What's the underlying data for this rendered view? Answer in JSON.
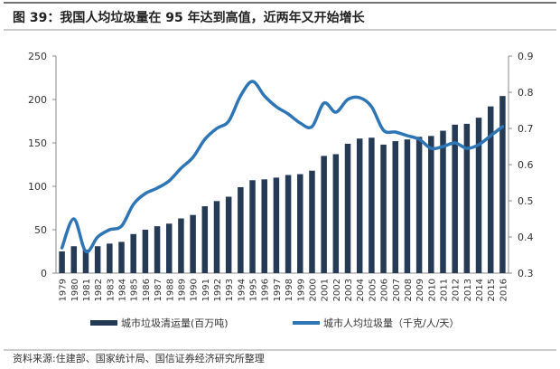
{
  "title": "图 39：我国人均垃圾量在 95 年达到高值，近两年又开始增长",
  "source": "资料来源:住建部、国家统计局、国信证券经济研究所整理",
  "colors": {
    "bar": "#253A55",
    "line": "#2E75B6",
    "axis": "#888888",
    "text": "#333333"
  },
  "chart_data": {
    "type": "bar+line",
    "title": "图 39：我国人均垃圾量在 95 年达到高值，近两年又开始增长",
    "categories": [
      "1979",
      "1980",
      "1981",
      "1982",
      "1983",
      "1984",
      "1985",
      "1986",
      "1987",
      "1988",
      "1989",
      "1990",
      "1991",
      "1992",
      "1993",
      "1994",
      "1995",
      "1996",
      "1997",
      "1998",
      "1999",
      "2000",
      "2001",
      "2002",
      "2003",
      "2004",
      "2005",
      "2006",
      "2007",
      "2008",
      "2009",
      "2010",
      "2011",
      "2012",
      "2013",
      "2014",
      "2015",
      "2016"
    ],
    "series": [
      {
        "name": "城市垃圾清运量(百万吨)",
        "type": "bar",
        "axis": "left",
        "values": [
          25,
          31,
          27,
          31,
          34,
          36,
          45,
          50,
          54,
          57,
          63,
          67,
          77,
          83,
          88,
          99,
          107,
          108,
          110,
          113,
          114,
          118,
          135,
          137,
          149,
          155,
          156,
          148,
          152,
          154,
          157,
          158,
          164,
          171,
          172,
          179,
          192,
          204
        ]
      },
      {
        "name": "城市人均垃圾量（千克/人/天）",
        "type": "line",
        "axis": "right",
        "values": [
          0.37,
          0.45,
          0.36,
          0.4,
          0.42,
          0.43,
          0.49,
          0.52,
          0.535,
          0.555,
          0.59,
          0.62,
          0.67,
          0.7,
          0.72,
          0.79,
          0.83,
          0.79,
          0.76,
          0.74,
          0.715,
          0.705,
          0.77,
          0.745,
          0.78,
          0.785,
          0.76,
          0.695,
          0.69,
          0.68,
          0.67,
          0.645,
          0.65,
          0.66,
          0.645,
          0.655,
          0.68,
          0.705
        ]
      }
    ],
    "y_left": {
      "lim": [
        0,
        250
      ],
      "ticks": [
        "0",
        "50",
        "100",
        "150",
        "200",
        "250"
      ]
    },
    "y_right": {
      "lim": [
        0.3,
        0.9
      ],
      "ticks": [
        "0.3",
        "0.4",
        "0.5",
        "0.6",
        "0.7",
        "0.8",
        "0.9"
      ]
    },
    "xlabel": "",
    "ylabel": "",
    "grid": false,
    "legend": "bottom"
  }
}
